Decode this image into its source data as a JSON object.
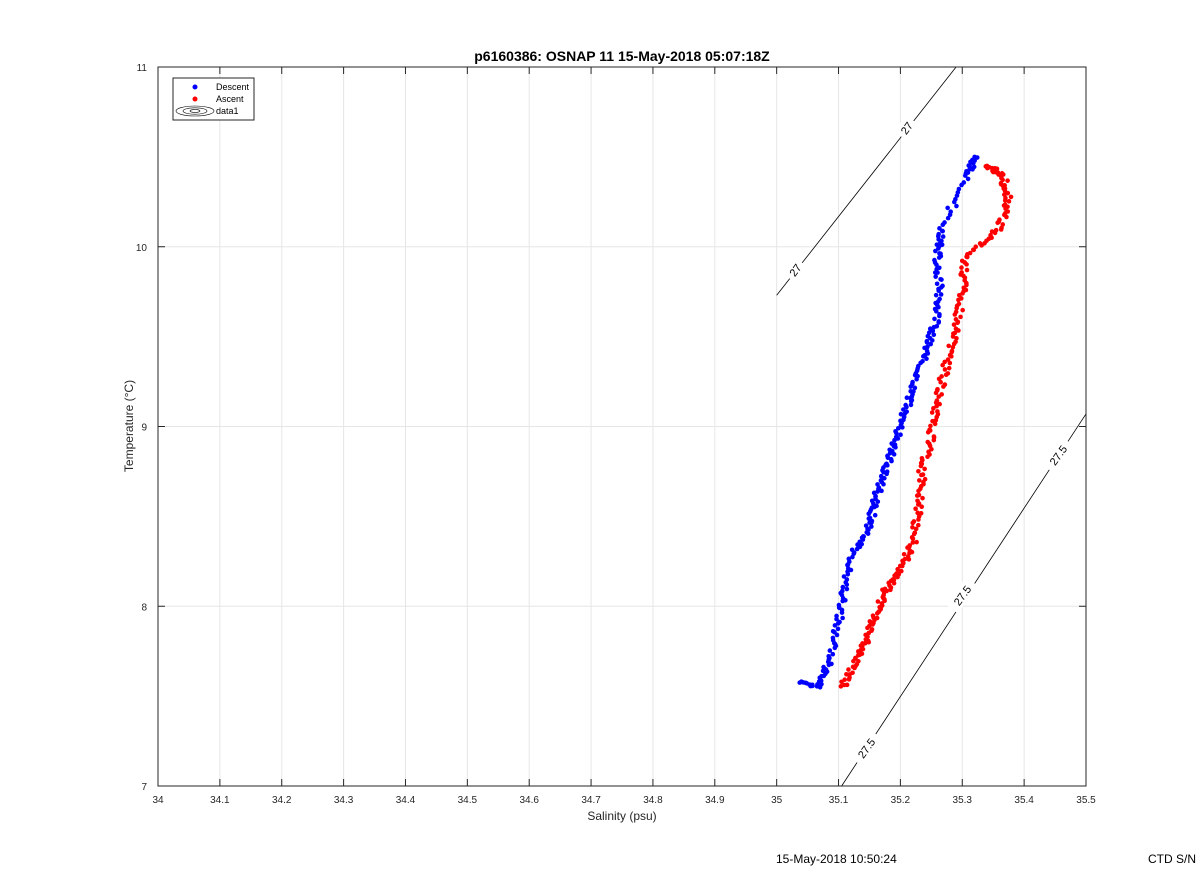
{
  "chart_data": {
    "type": "scatter",
    "title": "p6160386: OSNAP 11 15-May-2018 05:07:18Z",
    "xlabel": "Salinity (psu)",
    "ylabel": "Temperature (°C)",
    "xlim": [
      34,
      35.5
    ],
    "ylim": [
      7,
      11
    ],
    "xticks": [
      34,
      34.1,
      34.2,
      34.3,
      34.4,
      34.5,
      34.6,
      34.7,
      34.8,
      34.9,
      35,
      35.1,
      35.2,
      35.3,
      35.4,
      35.5
    ],
    "xtick_labels": [
      "34",
      "34.1",
      "34.2",
      "34.3",
      "34.4",
      "34.5",
      "34.6",
      "34.7",
      "34.8",
      "34.9",
      "35",
      "35.1",
      "35.2",
      "35.3",
      "35.4",
      "35.5"
    ],
    "yticks": [
      7,
      8,
      9,
      10,
      11
    ],
    "ytick_labels": [
      "7",
      "8",
      "9",
      "10",
      "11"
    ],
    "grid": true,
    "legend_position": "top-left",
    "legend": [
      "Descent",
      "Ascent",
      "data1"
    ],
    "series": [
      {
        "name": "Descent",
        "color": "#0000ff",
        "key_points": [
          [
            35.04,
            7.58
          ],
          [
            35.07,
            7.55
          ],
          [
            35.085,
            7.7
          ],
          [
            35.1,
            7.9
          ],
          [
            35.11,
            8.1
          ],
          [
            35.125,
            8.3
          ],
          [
            35.15,
            8.45
          ],
          [
            35.16,
            8.6
          ],
          [
            35.175,
            8.75
          ],
          [
            35.19,
            8.9
          ],
          [
            35.205,
            9.05
          ],
          [
            35.22,
            9.2
          ],
          [
            35.24,
            9.4
          ],
          [
            35.255,
            9.55
          ],
          [
            35.265,
            9.75
          ],
          [
            35.26,
            9.95
          ],
          [
            35.265,
            10.1
          ],
          [
            35.31,
            10.4
          ],
          [
            35.32,
            10.5
          ]
        ]
      },
      {
        "name": "Ascent",
        "color": "#ff0000",
        "key_points": [
          [
            35.105,
            7.55
          ],
          [
            35.13,
            7.7
          ],
          [
            35.145,
            7.82
          ],
          [
            35.16,
            7.95
          ],
          [
            35.175,
            8.08
          ],
          [
            35.2,
            8.2
          ],
          [
            35.22,
            8.35
          ],
          [
            35.23,
            8.55
          ],
          [
            35.235,
            8.75
          ],
          [
            35.25,
            8.95
          ],
          [
            35.26,
            9.15
          ],
          [
            35.275,
            9.35
          ],
          [
            35.29,
            9.55
          ],
          [
            35.3,
            9.75
          ],
          [
            35.305,
            9.95
          ],
          [
            35.36,
            10.1
          ],
          [
            35.375,
            10.27
          ],
          [
            35.365,
            10.4
          ],
          [
            35.34,
            10.45
          ]
        ]
      }
    ],
    "contour_labels": [
      "27",
      "27",
      "27.5",
      "27.5",
      "27.5"
    ],
    "contour_lines": [
      {
        "level": "27",
        "from": [
          35.0,
          9.73
        ],
        "to": [
          35.29,
          11.0
        ]
      },
      {
        "level": "27.5",
        "from": [
          35.105,
          7.0
        ],
        "to": [
          35.5,
          9.07
        ]
      }
    ],
    "contour_label_positions": [
      {
        "text": "27",
        "at": [
          35.03,
          9.87
        ]
      },
      {
        "text": "27",
        "at": [
          35.21,
          10.66
        ]
      },
      {
        "text": "27.5",
        "at": [
          35.145,
          7.21
        ]
      },
      {
        "text": "27.5",
        "at": [
          35.3,
          8.06
        ]
      },
      {
        "text": "27.5",
        "at": [
          35.455,
          8.84
        ]
      }
    ]
  },
  "footer": {
    "timestamp": "15-May-2018 10:50:24",
    "serial": "CTD S/N"
  }
}
